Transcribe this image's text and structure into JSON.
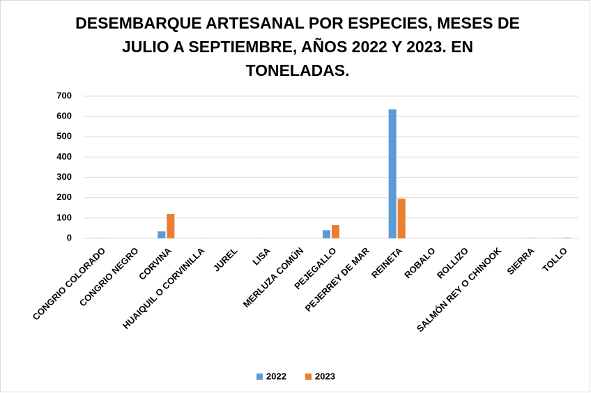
{
  "chart_data": {
    "type": "bar",
    "title": "DESEMBARQUE ARTESANAL POR ESPECIES, MESES DE JULIO A SEPTIEMBRE, AÑOS 2022 Y 2023. EN TONELADAS.",
    "categories": [
      "CONGRIO COLORADO",
      "CONGRIO NEGRO",
      "CORVINA",
      "HUAIQUIL O CORVINILLA",
      "JUREL",
      "LISA",
      "MERLUZA COMÚN",
      "PEJEGALLO",
      "PEJERREY DE MAR",
      "REINETA",
      "ROBALO",
      "ROLLIZO",
      "SALMÓN REY O CHINOOK",
      "SIERRA",
      "TOLLO"
    ],
    "series": [
      {
        "name": "2022",
        "color": "#5b9bd5",
        "values": [
          1,
          0.5,
          34,
          0.5,
          0,
          0.5,
          0,
          40,
          0,
          635,
          0.5,
          0,
          0,
          0.5,
          1
        ]
      },
      {
        "name": "2023",
        "color": "#ed7d31",
        "values": [
          1,
          0.5,
          120,
          0.5,
          0,
          0.5,
          0,
          65,
          0.5,
          195,
          0.5,
          0,
          0,
          2,
          3
        ]
      }
    ],
    "ylim": [
      0,
      700
    ],
    "yticks": [
      0,
      100,
      200,
      300,
      400,
      500,
      600,
      700
    ],
    "grid": true,
    "legend": "bottom"
  }
}
